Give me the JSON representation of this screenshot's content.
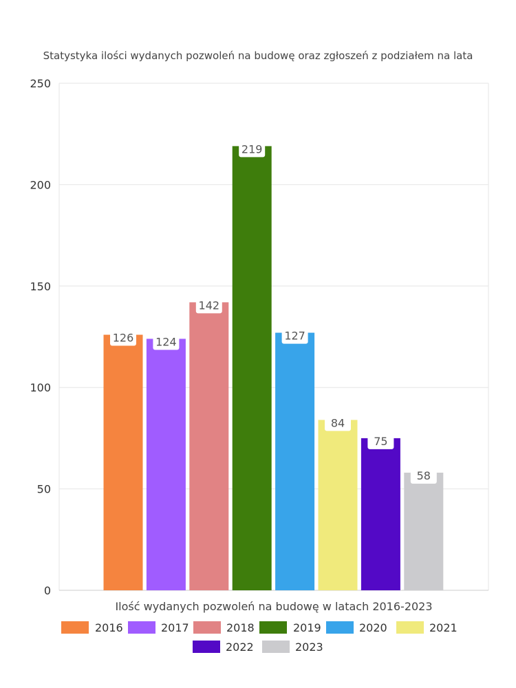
{
  "chart_data": {
    "type": "bar",
    "title": "Statystyka ilości wydanych pozwoleń na budowę oraz zgłoszeń z podziałem na lata",
    "xlabel": "Ilość wydanych pozwoleń na budowę w latach 2016-2023",
    "ylabel": "",
    "ylim": [
      0,
      250
    ],
    "yticks": [
      "0",
      "50",
      "100",
      "150",
      "200",
      "250"
    ],
    "grid": true,
    "legend_position": "bottom",
    "series": [
      {
        "name": "2016",
        "value": 126,
        "color": "#f5843f"
      },
      {
        "name": "2017",
        "value": 124,
        "color": "#a05cff"
      },
      {
        "name": "2018",
        "value": 142,
        "color": "#e18384"
      },
      {
        "name": "2019",
        "value": 219,
        "color": "#3e7d0c"
      },
      {
        "name": "2020",
        "value": 127,
        "color": "#38a4ea"
      },
      {
        "name": "2021",
        "value": 84,
        "color": "#f0ea7c"
      },
      {
        "name": "2022",
        "value": 75,
        "color": "#5309c6"
      },
      {
        "name": "2023",
        "value": 58,
        "color": "#cbcbce"
      }
    ]
  }
}
